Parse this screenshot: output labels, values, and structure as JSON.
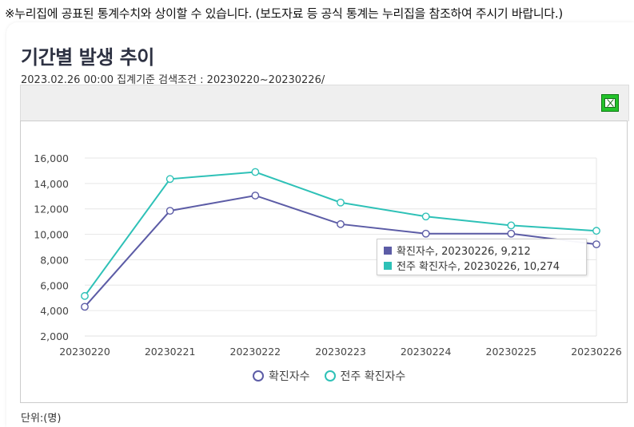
{
  "notice": "※누리집에 공표된 통계수치와 상이할 수 있습니다. (보도자료 등 공식 통계는 누리집을 참조하여 주시기 바랍니다.)",
  "header": {
    "title": "기간별 발생 추이",
    "subtitle": "2023.02.26 00:00  집계기준 검색조건 : 20230220~20230226/"
  },
  "toolbar": {
    "excel_icon": "excel-download-icon"
  },
  "unit_label": "단위:(명)",
  "tooltip": {
    "rows": [
      {
        "text": "확진자수, 20230226, 9,212",
        "color": "#5c5ca6"
      },
      {
        "text": "전주 확진자수, 20230226, 10,274",
        "color": "#2ec1b7"
      }
    ]
  },
  "chart_data": {
    "type": "line",
    "categories": [
      "20230220",
      "20230221",
      "20230222",
      "20230223",
      "20230224",
      "20230225",
      "20230226"
    ],
    "series": [
      {
        "name": "확진자수",
        "color": "#5c5ca6",
        "values": [
          4300,
          11850,
          13050,
          10800,
          10050,
          10050,
          9212
        ]
      },
      {
        "name": "전주 확진자수",
        "color": "#2ec1b7",
        "values": [
          5150,
          14350,
          14900,
          12500,
          11400,
          10700,
          10274
        ]
      }
    ],
    "ylim": [
      2000,
      16000
    ],
    "yticks": [
      "2,000",
      "4,000",
      "6,000",
      "8,000",
      "10,000",
      "12,000",
      "14,000",
      "16,000"
    ],
    "ytick_values": [
      2000,
      4000,
      6000,
      8000,
      10000,
      12000,
      14000,
      16000
    ],
    "grid": true,
    "legend_position": "bottom"
  }
}
